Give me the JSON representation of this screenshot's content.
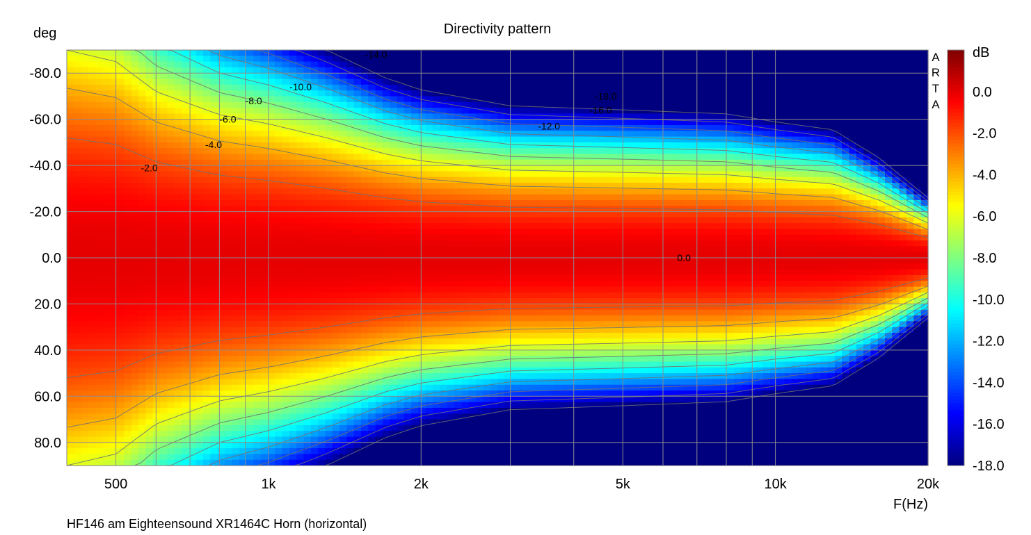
{
  "chart_data": {
    "type": "heatmap",
    "title": "Directivity pattern",
    "subtitle": "HF146 am Eighteensound XR1464C Horn (horizontal)",
    "xlabel": "F(Hz)",
    "ylabel": "deg",
    "x_scale": "log",
    "xlim": [
      400,
      20000
    ],
    "ylim": [
      -90,
      90
    ],
    "x_ticks": [
      {
        "value": 500,
        "label": "500"
      },
      {
        "value": 1000,
        "label": "1k"
      },
      {
        "value": 2000,
        "label": "2k"
      },
      {
        "value": 5000,
        "label": "5k"
      },
      {
        "value": 10000,
        "label": "10k"
      },
      {
        "value": 20000,
        "label": "20k"
      }
    ],
    "y_ticks": [
      {
        "value": -80,
        "label": "-80.0"
      },
      {
        "value": -60,
        "label": "-60.0"
      },
      {
        "value": -40,
        "label": "-40.0"
      },
      {
        "value": -20,
        "label": "-20.0"
      },
      {
        "value": 0,
        "label": "0.0"
      },
      {
        "value": 20,
        "label": "20.0"
      },
      {
        "value": 40,
        "label": "40.0"
      },
      {
        "value": 60,
        "label": "60.0"
      },
      {
        "value": 80,
        "label": "80.0"
      }
    ],
    "grid": true,
    "colorbar": {
      "label": "dB",
      "range": [
        -18,
        2
      ],
      "ticks": [
        "0.0",
        "-2.0",
        "-4.0",
        "-6.0",
        "-8.0",
        "-10.0",
        "-12.0",
        "-14.0",
        "-16.0",
        "-18.0"
      ],
      "tick_values": [
        0,
        -2,
        -4,
        -6,
        -8,
        -10,
        -12,
        -14,
        -16,
        -18
      ],
      "colors": [
        "#00007f",
        "#0000ff",
        "#007fff",
        "#00ffff",
        "#7fff7f",
        "#ffff00",
        "#ff7f00",
        "#ff0000",
        "#7f0000"
      ]
    },
    "watermark": "ARTA",
    "beamwidth_deg_half_angle_6dB": [
      {
        "f": 400,
        "deg": 90
      },
      {
        "f": 500,
        "deg": 85
      },
      {
        "f": 600,
        "deg": 72
      },
      {
        "f": 800,
        "deg": 62
      },
      {
        "f": 1000,
        "deg": 58
      },
      {
        "f": 1300,
        "deg": 52
      },
      {
        "f": 1700,
        "deg": 45
      },
      {
        "f": 2000,
        "deg": 42
      },
      {
        "f": 3000,
        "deg": 38
      },
      {
        "f": 5000,
        "deg": 37
      },
      {
        "f": 8000,
        "deg": 36
      },
      {
        "f": 10000,
        "deg": 34
      },
      {
        "f": 13000,
        "deg": 32
      },
      {
        "f": 16000,
        "deg": 25
      },
      {
        "f": 20000,
        "deg": 15
      }
    ],
    "contour_labels": [
      {
        "text": "-2.0",
        "f": 560,
        "deg": -39
      },
      {
        "text": "-4.0",
        "f": 750,
        "deg": -49
      },
      {
        "text": "-6.0",
        "f": 800,
        "deg": -60
      },
      {
        "text": "-8.0",
        "f": 900,
        "deg": -68
      },
      {
        "text": "-10.0",
        "f": 1100,
        "deg": -74
      },
      {
        "text": "-14.0",
        "f": 1550,
        "deg": -88
      },
      {
        "text": "-12.0",
        "f": 3400,
        "deg": -57
      },
      {
        "text": "-16.0",
        "f": 4300,
        "deg": -64
      },
      {
        "text": "-18.0",
        "f": 4400,
        "deg": -70
      },
      {
        "text": "0.0",
        "f": 6400,
        "deg": 0
      }
    ]
  }
}
